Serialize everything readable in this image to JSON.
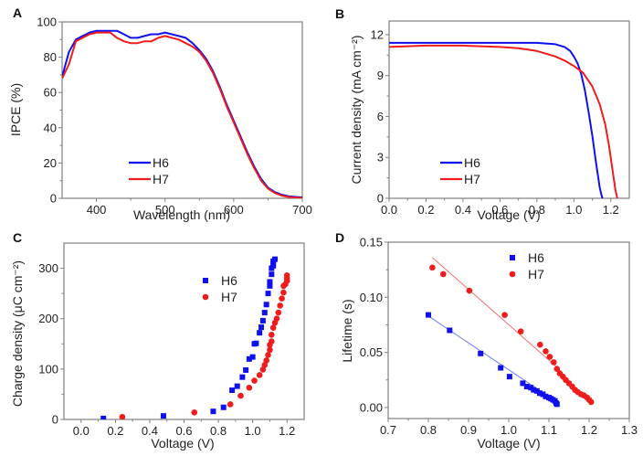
{
  "colors": {
    "H6": "#1010ee",
    "H7": "#ee1c1c",
    "H6_fit": "#6a7ff0",
    "H7_fit": "#f07070",
    "frame": "#808080"
  },
  "chart_data": [
    {
      "panel": "A",
      "type": "line",
      "xlabel": "Wavelength (nm)",
      "ylabel": "IPCE (%)",
      "xlim": [
        350,
        700
      ],
      "ylim": [
        0,
        100
      ],
      "xticks": [
        400,
        500,
        600,
        700
      ],
      "yticks": [
        0,
        20,
        40,
        60,
        80,
        100
      ],
      "legend": {
        "position": "bottom-center",
        "entries": [
          "H6",
          "H7"
        ]
      },
      "series": [
        {
          "name": "H6",
          "x": [
            350,
            360,
            370,
            380,
            390,
            400,
            410,
            420,
            430,
            440,
            450,
            460,
            470,
            480,
            490,
            500,
            510,
            520,
            530,
            540,
            550,
            560,
            570,
            580,
            590,
            600,
            610,
            620,
            630,
            640,
            650,
            660,
            670,
            680,
            690,
            700
          ],
          "y": [
            69,
            83,
            90,
            92,
            94,
            95,
            95,
            95,
            95,
            93,
            91,
            91,
            92,
            93,
            93,
            94,
            93,
            92,
            91,
            88,
            84,
            79,
            72,
            63,
            53,
            44,
            35,
            26,
            18,
            11,
            6,
            3.5,
            2,
            1.2,
            0.8,
            0.5
          ]
        },
        {
          "name": "H7",
          "x": [
            350,
            360,
            370,
            380,
            390,
            400,
            410,
            420,
            430,
            440,
            450,
            460,
            470,
            480,
            490,
            500,
            510,
            520,
            530,
            540,
            550,
            560,
            570,
            580,
            590,
            600,
            610,
            620,
            630,
            640,
            650,
            660,
            670,
            680,
            690,
            700
          ],
          "y": [
            68,
            76,
            89,
            91,
            93,
            94,
            94,
            94,
            91,
            89,
            88,
            88,
            89,
            89,
            91,
            92,
            91,
            90,
            88,
            86,
            83,
            78,
            71,
            62,
            52,
            43,
            34,
            25,
            17,
            10,
            5.5,
            3,
            1.5,
            0.8,
            0.4,
            0.2
          ]
        }
      ]
    },
    {
      "panel": "B",
      "type": "line",
      "xlabel": "Voltage (V)",
      "ylabel": "Current density (mA cm⁻²)",
      "xlim": [
        0,
        1.3
      ],
      "ylim": [
        0,
        13
      ],
      "xticks": [
        0.0,
        0.2,
        0.4,
        0.6,
        0.8,
        1.0,
        1.2
      ],
      "yticks": [
        0,
        3,
        6,
        9,
        12
      ],
      "legend": {
        "position": "bottom-center",
        "entries": [
          "H6",
          "H7"
        ]
      },
      "series": [
        {
          "name": "H6",
          "x": [
            0,
            0.2,
            0.4,
            0.6,
            0.8,
            0.9,
            0.95,
            0.98,
            1.0,
            1.02,
            1.04,
            1.06,
            1.08,
            1.1,
            1.12,
            1.14,
            1.15,
            1.155
          ],
          "y": [
            11.4,
            11.4,
            11.4,
            11.4,
            11.4,
            11.3,
            11.1,
            10.8,
            10.4,
            9.9,
            9.1,
            7.9,
            6.3,
            4.6,
            2.6,
            0.8,
            0.2,
            0
          ]
        },
        {
          "name": "H7",
          "x": [
            0,
            0.2,
            0.4,
            0.6,
            0.7,
            0.8,
            0.85,
            0.9,
            0.95,
            1.0,
            1.05,
            1.1,
            1.14,
            1.17,
            1.19,
            1.21,
            1.225,
            1.235
          ],
          "y": [
            11.1,
            11.2,
            11.2,
            11.1,
            11.0,
            10.8,
            10.6,
            10.4,
            10.1,
            9.7,
            9.2,
            8.2,
            6.9,
            5.4,
            3.9,
            2.0,
            0.6,
            0
          ]
        }
      ]
    },
    {
      "panel": "C",
      "type": "scatter",
      "xlabel": "Voltage  (V)",
      "ylabel": "Charge density (μC cm⁻²)",
      "xlim": [
        -0.1,
        1.3
      ],
      "ylim": [
        0,
        350
      ],
      "xticks": [
        0.0,
        0.2,
        0.4,
        0.6,
        0.8,
        1.0,
        1.2
      ],
      "yticks": [
        0,
        100,
        200,
        300
      ],
      "legend": {
        "position": "top-right",
        "entries": [
          "H6",
          "H7"
        ]
      },
      "series": [
        {
          "name": "H6",
          "marker": "square",
          "x": [
            0.13,
            0.48,
            0.77,
            0.83,
            0.88,
            0.91,
            0.94,
            0.96,
            0.98,
            1.0,
            1.01,
            1.02,
            1.04,
            1.05,
            1.06,
            1.07,
            1.08,
            1.09,
            1.1,
            1.1,
            1.11,
            1.11,
            1.12,
            1.12,
            1.12,
            1.13
          ],
          "y": [
            2,
            7,
            16,
            24,
            58,
            66,
            84,
            98,
            120,
            124,
            150,
            151,
            172,
            183,
            196,
            212,
            228,
            250,
            265,
            273,
            288,
            300,
            305,
            310,
            314,
            318
          ]
        },
        {
          "name": "H7",
          "marker": "circle",
          "x": [
            0.24,
            0.66,
            0.87,
            0.93,
            0.98,
            1.01,
            1.04,
            1.06,
            1.07,
            1.08,
            1.09,
            1.1,
            1.1,
            1.11,
            1.11,
            1.12,
            1.13,
            1.14,
            1.15,
            1.16,
            1.17,
            1.18,
            1.18,
            1.19,
            1.2,
            1.2,
            1.2
          ],
          "y": [
            5,
            14,
            30,
            47,
            63,
            77,
            88,
            99,
            108,
            117,
            128,
            138,
            148,
            155,
            168,
            182,
            192,
            200,
            212,
            226,
            240,
            252,
            265,
            268,
            275,
            280,
            286
          ]
        }
      ]
    },
    {
      "panel": "D",
      "type": "scatter",
      "xlabel": "Voltage (V)",
      "ylabel": "Lifetime (s)",
      "xlim": [
        0.7,
        1.3
      ],
      "ylim": [
        -0.01,
        0.15
      ],
      "xticks": [
        0.7,
        0.8,
        0.9,
        1.0,
        1.1,
        1.2,
        1.3
      ],
      "yticks": [
        0.0,
        0.05,
        0.1,
        0.15
      ],
      "ytick_labels": [
        "0.00",
        "0.05",
        "0.10",
        "0.15"
      ],
      "legend": {
        "position": "top-right",
        "entries": [
          "H6",
          "H7"
        ]
      },
      "series": [
        {
          "name": "H6",
          "marker": "square",
          "x": [
            0.8,
            0.853,
            0.93,
            0.98,
            1.002,
            1.035,
            1.045,
            1.055,
            1.062,
            1.07,
            1.077,
            1.085,
            1.092,
            1.1,
            1.105,
            1.11,
            1.115,
            1.118,
            1.12
          ],
          "y": [
            0.084,
            0.07,
            0.049,
            0.036,
            0.028,
            0.022,
            0.019,
            0.018,
            0.016,
            0.015,
            0.013,
            0.012,
            0.01,
            0.009,
            0.008,
            0.007,
            0.006,
            0.004,
            0.003
          ],
          "fit": {
            "x": [
              0.8,
              1.12
            ],
            "y": [
              0.083,
              0.005
            ]
          }
        },
        {
          "name": "H7",
          "marker": "circle",
          "x": [
            0.81,
            0.837,
            0.902,
            0.99,
            1.03,
            1.078,
            1.092,
            1.102,
            1.112,
            1.12,
            1.127,
            1.135,
            1.142,
            1.15,
            1.158,
            1.165,
            1.172,
            1.18,
            1.187,
            1.195,
            1.2,
            1.205
          ],
          "y": [
            0.127,
            0.121,
            0.106,
            0.084,
            0.069,
            0.057,
            0.051,
            0.046,
            0.041,
            0.035,
            0.031,
            0.028,
            0.025,
            0.022,
            0.019,
            0.016,
            0.014,
            0.012,
            0.011,
            0.009,
            0.007,
            0.005
          ],
          "fit": {
            "x": [
              0.81,
              1.125
            ],
            "y": [
              0.136,
              0.035
            ]
          }
        }
      ]
    }
  ]
}
